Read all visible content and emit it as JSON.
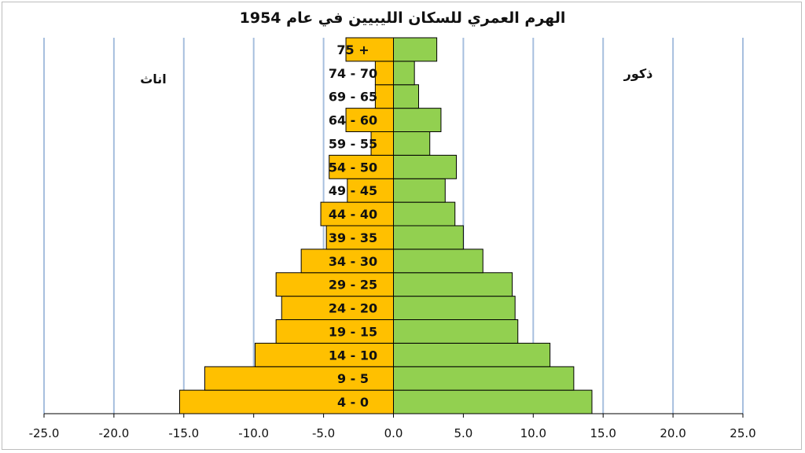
{
  "chart_data": {
    "type": "bar",
    "orientation": "horizontal",
    "title": "الهرم العمري للسكان الليبيين في عام 1954",
    "left_label": "اناث",
    "right_label": "ذكور",
    "categories": [
      "4 - 0",
      "9 - 5",
      "14 - 10",
      "19 - 15",
      "24 - 20",
      "29 - 25",
      "34 - 30",
      "39 - 35",
      "44 - 40",
      "49 - 45",
      "54 - 50",
      "59 - 55",
      "64 - 60",
      "69 - 65",
      "74 - 70",
      "75 +"
    ],
    "series": [
      {
        "name": "اناث",
        "color": "#FFC000",
        "values": [
          -15.3,
          -13.5,
          -9.9,
          -8.4,
          -8.0,
          -8.4,
          -6.6,
          -4.8,
          -5.2,
          -3.3,
          -4.6,
          -1.6,
          -3.4,
          -1.3,
          -1.3,
          -3.4
        ]
      },
      {
        "name": "ذكور",
        "color": "#92D050",
        "values": [
          14.2,
          12.9,
          11.2,
          8.9,
          8.7,
          8.5,
          6.4,
          5.0,
          4.4,
          3.7,
          4.5,
          2.6,
          3.4,
          1.8,
          1.5,
          3.1
        ]
      }
    ],
    "xlim": [
      -25,
      25
    ],
    "xticks": [
      -25,
      -20,
      -15,
      -10,
      -5,
      0,
      5,
      10,
      15,
      20,
      25
    ],
    "xtick_labels": [
      "-25.0",
      "-20.0",
      "-15.0",
      "-10.0",
      "-5.0",
      "0.0",
      "5.0",
      "10.0",
      "15.0",
      "20.0",
      "25.0"
    ],
    "grid": "vertical",
    "grid_color": "#A7BFDE"
  }
}
